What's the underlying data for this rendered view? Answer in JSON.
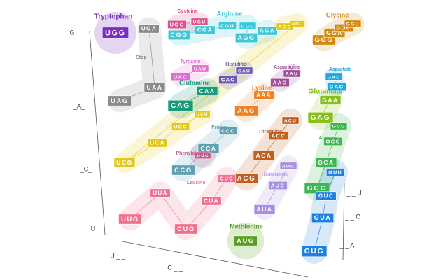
{
  "axes": {
    "left": [
      "_G_",
      "_A_",
      "_C_",
      "_U_"
    ],
    "bottom": [
      "U _ _",
      "C _ _"
    ],
    "right": [
      "_ _ U",
      "_ _ C",
      "_ _ A"
    ]
  },
  "groups": [
    {
      "name": "Tryptophan",
      "color": "#7b2fbe",
      "codons": [
        "UGG"
      ]
    },
    {
      "name": "Stop",
      "color": "#8a8a8a",
      "codons": [
        "UGA",
        "UAA",
        "UAG"
      ]
    },
    {
      "name": "Cysteine",
      "color": "#e0508a",
      "codons": [
        "UGC",
        "UGU"
      ]
    },
    {
      "name": "Arginine",
      "color": "#3cc8d8",
      "codons": [
        "CGG",
        "CGA",
        "CGU",
        "CGC",
        "AGG",
        "AGA"
      ]
    },
    {
      "color": "#e2c818",
      "codons": [
        "AGC",
        "AGU",
        "UCG",
        "UCA",
        "UCC",
        "UCU"
      ]
    },
    {
      "name": "Glycine",
      "color": "#d08a10",
      "codons": [
        "GGG",
        "GGA",
        "GGC",
        "GGU"
      ]
    },
    {
      "name": "Tyrosine",
      "color": "#e070d0",
      "codons": [
        "UAC",
        "UAU"
      ]
    },
    {
      "name": "Histidine",
      "color": "#6a5ab8",
      "codons": [
        "CAC",
        "CAU"
      ]
    },
    {
      "name": "Asparagine",
      "color": "#a0509a",
      "codons": [
        "AAC",
        "AAU"
      ]
    },
    {
      "name": "Aspartate",
      "color": "#20a8e0",
      "codons": [
        "GAC",
        "GAU"
      ]
    },
    {
      "name": "Glutamine",
      "color": "#1a9a78",
      "codons": [
        "CAG",
        "CAA"
      ]
    },
    {
      "name": "Lysine",
      "color": "#f08020",
      "codons": [
        "AAG",
        "AAA"
      ]
    },
    {
      "name": "Glutamate",
      "color": "#88c020",
      "codons": [
        "GAG",
        "GAA"
      ]
    },
    {
      "name": "Proline",
      "color": "#60a0b0",
      "codons": [
        "CCG",
        "CCA",
        "CCC"
      ]
    },
    {
      "name": "Phenylalanine",
      "color": "#c06090",
      "codons": [
        "UUC"
      ]
    },
    {
      "name": "Threonine",
      "color": "#c06020",
      "codons": [
        "ACG",
        "ACA",
        "ACC",
        "ACU"
      ]
    },
    {
      "name": "Alanine",
      "color": "#3cb850",
      "codons": [
        "GCG",
        "GCA",
        "GCC",
        "GCU"
      ]
    },
    {
      "name": "Isoleucine",
      "color": "#a890e0",
      "codons": [
        "AUA",
        "AUC",
        "AUU"
      ]
    },
    {
      "name": "Leucine",
      "color": "#f07090",
      "codons": [
        "UUG",
        "UUA",
        "CUG",
        "CUA",
        "CUC"
      ]
    },
    {
      "name": "Methionine",
      "color": "#5aa020",
      "codons": [
        "AUG"
      ]
    },
    {
      "color": "#2080e0",
      "codons": [
        "GUG",
        "GUA",
        "GUC",
        "GUU"
      ]
    }
  ]
}
